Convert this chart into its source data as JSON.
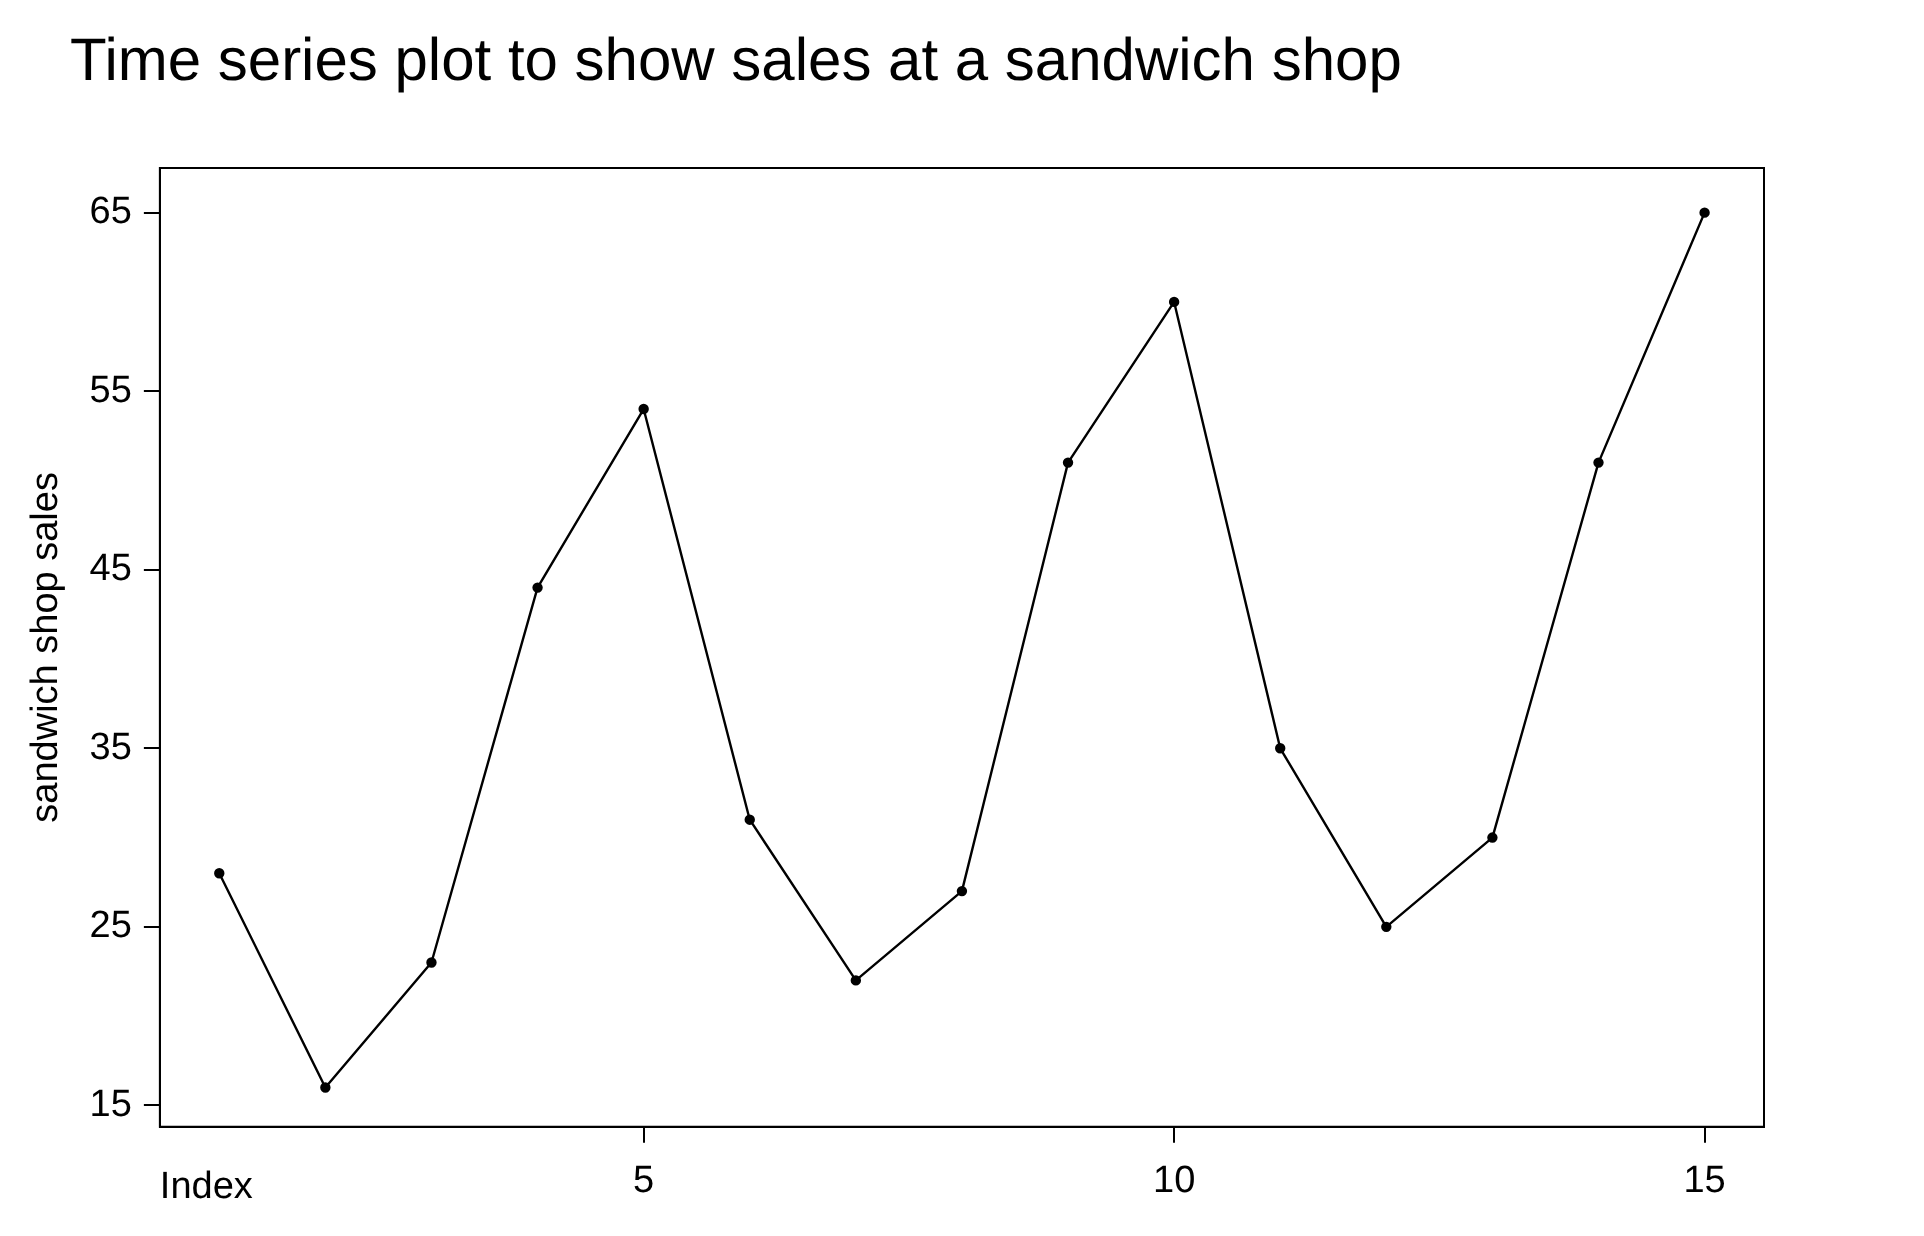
{
  "chart_data": {
    "type": "line",
    "title": "Time series plot to show sales at a sandwich shop",
    "xlabel": "Index",
    "ylabel": "sandwich shop sales",
    "x": [
      1,
      2,
      3,
      4,
      5,
      6,
      7,
      8,
      9,
      10,
      11,
      12,
      13,
      14,
      15
    ],
    "series": [
      {
        "color": "#000000",
        "values": [
          28,
          16,
          23,
          44,
          54,
          31,
          22,
          27,
          51,
          60,
          35,
          25,
          30,
          51,
          65
        ]
      }
    ],
    "xlim": [
      0.44,
      15.56
    ],
    "xticks": [
      5,
      10,
      15
    ],
    "ylim": [
      13.8,
      67.5
    ],
    "yticks": [
      15,
      25,
      35,
      45,
      55,
      65
    ],
    "grid": false,
    "legend": false,
    "marker": "circle",
    "line_style": "solid"
  }
}
